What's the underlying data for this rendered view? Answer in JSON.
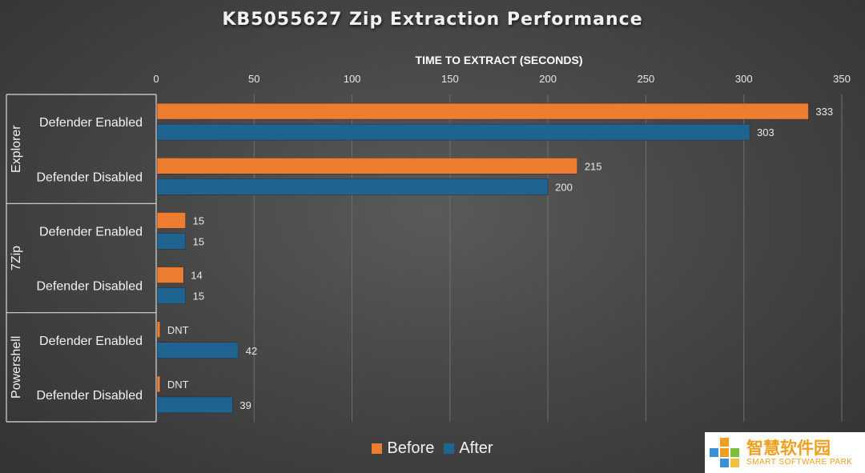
{
  "chart_data": {
    "type": "bar",
    "orientation": "horizontal",
    "title": "KB5055627 Zip Extraction Performance",
    "xlabel": "TIME TO EXTRACT (SECONDS)",
    "xlim": [
      0,
      350
    ],
    "xticks": [
      0,
      50,
      100,
      150,
      200,
      250,
      300,
      350
    ],
    "grid": true,
    "legend_position": "bottom",
    "groups": [
      {
        "name": "Explorer",
        "categories": [
          "Defender Enabled",
          "Defender Disabled"
        ]
      },
      {
        "name": "7Zip",
        "categories": [
          "Defender Enabled",
          "Defender Disabled"
        ]
      },
      {
        "name": "Powershell",
        "categories": [
          "Defender Enabled",
          "Defender Disabled"
        ]
      }
    ],
    "series": [
      {
        "name": "Before",
        "color": "#ed7d31",
        "values": [
          333,
          215,
          15,
          14,
          2,
          2
        ],
        "labels": [
          "333",
          "215",
          "15",
          "14",
          "DNT",
          "DNT"
        ]
      },
      {
        "name": "After",
        "color": "#1f6391",
        "values": [
          303,
          200,
          15,
          15,
          42,
          39
        ],
        "labels": [
          "303",
          "200",
          "15",
          "15",
          "42",
          "39"
        ]
      }
    ]
  },
  "watermark": {
    "chinese": "智慧软件园",
    "english": "SMART SOFTWARE PARK"
  }
}
